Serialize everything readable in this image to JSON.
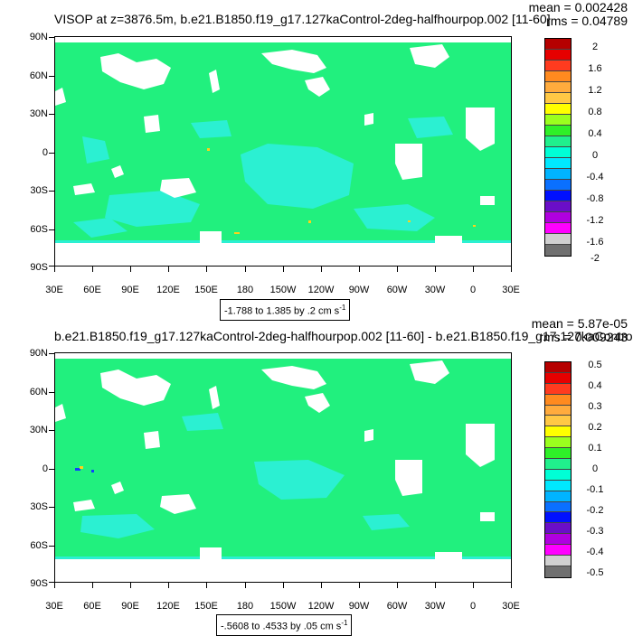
{
  "panels": [
    {
      "title": "VISOP at z=3876.5m, b.e21.B1850.f19_g17.127kaControl-2deg-halfhourpop.002 [11-60]",
      "mean_text": "mean = 0.002428",
      "rms_text": "rms = 0.04789",
      "range_text": "-1.788 to 1.385 by .2 cm s",
      "range_unit_exp": "-1",
      "colorbar": {
        "labels": [
          "2",
          "1.6",
          "1.2",
          "0.8",
          "0.4",
          "0",
          "-0.4",
          "-0.8",
          "-1.2",
          "-1.6",
          "-2"
        ],
        "colors": [
          "#b50000",
          "#e60000",
          "#ff3b1f",
          "#ff8a1f",
          "#ffab3d",
          "#ffc845",
          "#ffff00",
          "#9bff1e",
          "#2ff028",
          "#20f08c",
          "#00ffd6",
          "#00e8ff",
          "#00b4ff",
          "#0a70ff",
          "#0010ff",
          "#6a0ec8",
          "#b000e0",
          "#ff00ff",
          "#d0d0d0",
          "#707070"
        ]
      }
    },
    {
      "title": "b.e21.B1850.f19_g17.127kaControl-2deg-halfhourpop.002 [11-60] - b.e21.B1850.f19_g17.127kaControl-",
      "mean_text": "mean = 5.87e-05",
      "rms_text": "rms = 0.009243",
      "range_text": "-.5608 to .4533 by .05 cm s",
      "range_unit_exp": "-1",
      "colorbar": {
        "labels": [
          "0.5",
          "0.4",
          "0.3",
          "0.2",
          "0.1",
          "0",
          "-0.1",
          "-0.2",
          "-0.3",
          "-0.4",
          "-0.5"
        ],
        "colors": [
          "#b50000",
          "#e60000",
          "#ff3b1f",
          "#ff8a1f",
          "#ffab3d",
          "#ffc845",
          "#ffff00",
          "#9bff1e",
          "#2ff028",
          "#20f08c",
          "#00ffd6",
          "#00e8ff",
          "#00b4ff",
          "#0a70ff",
          "#0010ff",
          "#6a0ec8",
          "#b000e0",
          "#ff00ff",
          "#d0d0d0",
          "#707070"
        ]
      }
    }
  ],
  "axes": {
    "y_labels": [
      "90N",
      "60N",
      "30N",
      "0",
      "30S",
      "60S",
      "90S"
    ],
    "x_labels": [
      "30E",
      "60E",
      "90E",
      "120E",
      "150E",
      "180",
      "150W",
      "120W",
      "90W",
      "60W",
      "30W",
      "0",
      "30E"
    ]
  },
  "map_colors": {
    "ocean_main": "#21f07e",
    "ocean_anomaly": "#2bf0d2",
    "land": "#ffffff",
    "spot_positive": "#ffd21a",
    "spot_negative": "#1040ff"
  }
}
